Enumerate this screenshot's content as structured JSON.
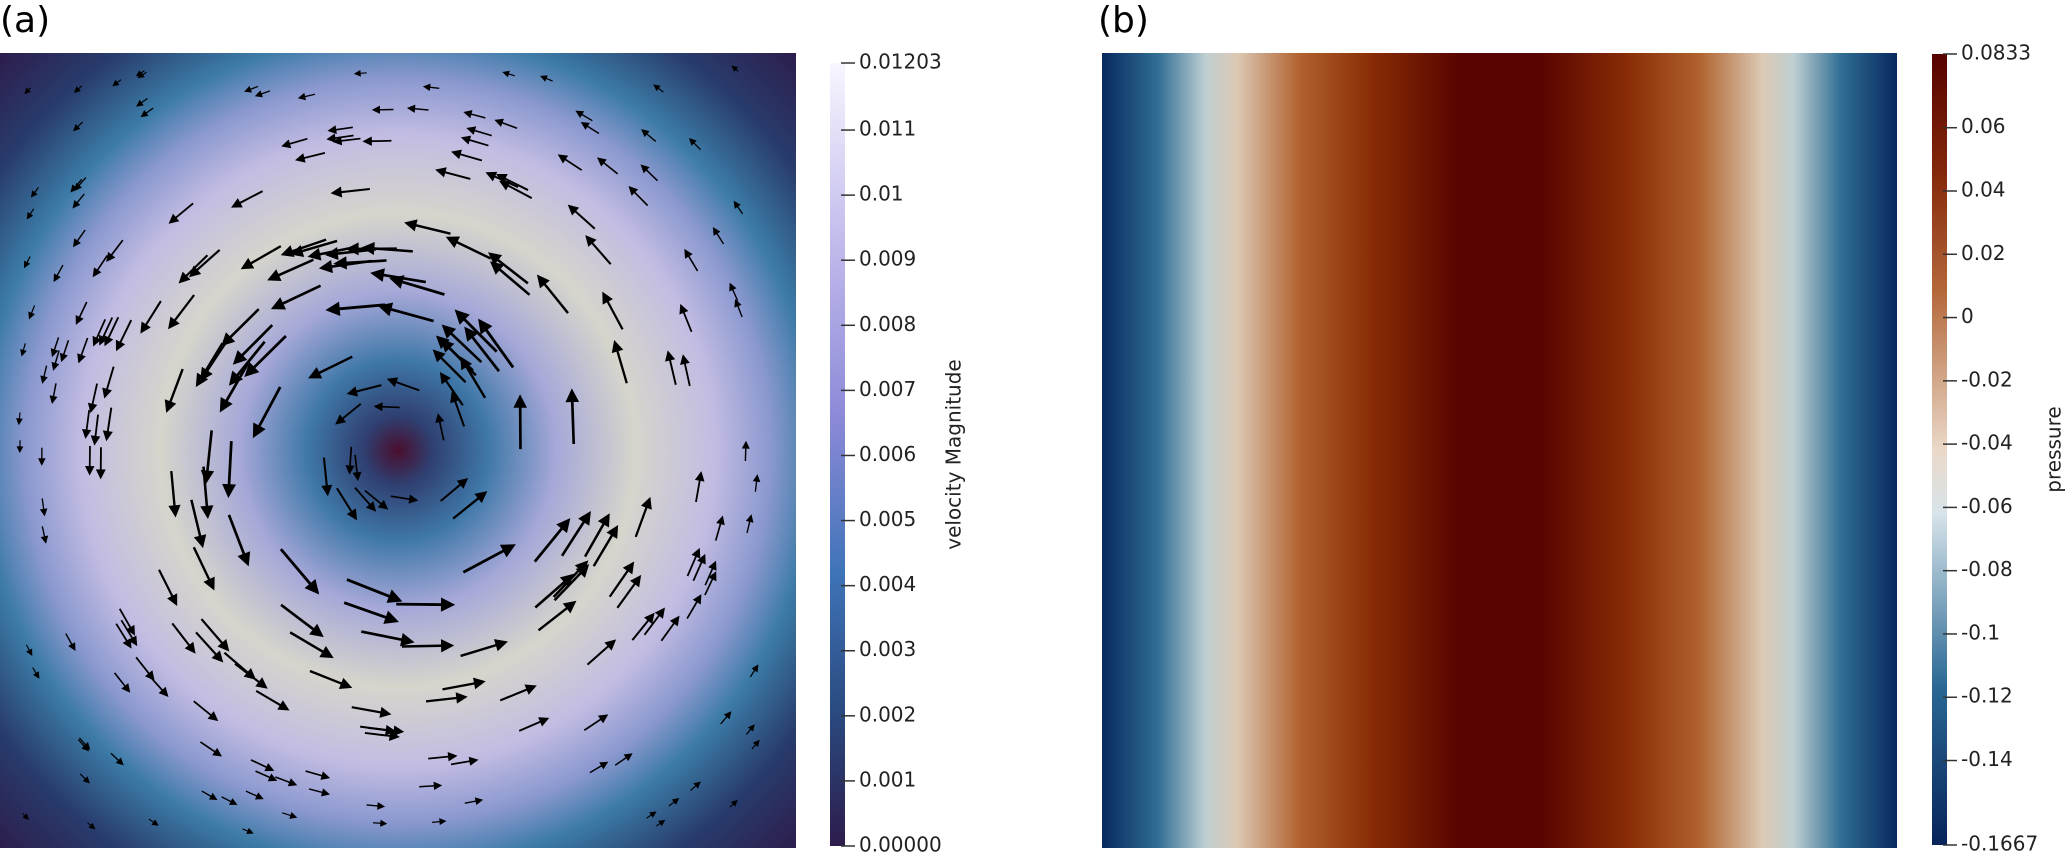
{
  "chart_data": [
    {
      "type": "heatmap",
      "label": "(a)",
      "colorbar_title": "velocity Magnitude",
      "clim": [
        0,
        0.01203
      ],
      "cticks": [
        {
          "value": 0,
          "label": "0.00000"
        },
        0.001,
        0.002,
        0.003,
        0.004,
        0.005,
        0.006,
        0.007,
        0.008,
        0.009,
        0.01,
        0.011,
        0.01203
      ]
    },
    {
      "type": "heatmap",
      "label": "(b)",
      "colorbar_title": "pressure",
      "clim": [
        -0.1667,
        0.0833
      ],
      "cticks": [
        -0.1667,
        -0.14,
        -0.12,
        -0.1,
        -0.08,
        -0.06,
        -0.04,
        -0.02,
        0,
        0.02,
        0.04,
        0.06,
        0.0833
      ]
    }
  ]
}
